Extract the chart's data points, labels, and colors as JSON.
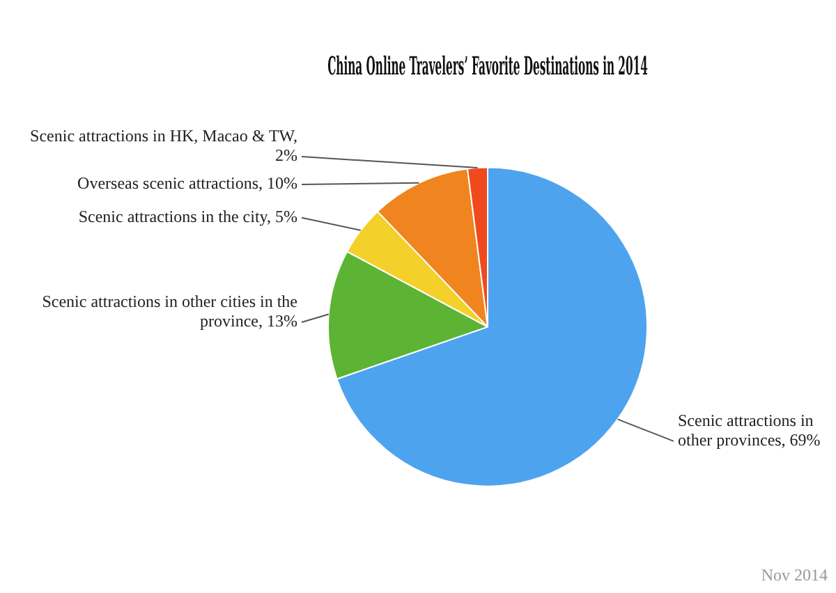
{
  "chart_data": {
    "type": "pie",
    "title": "China Online Travelers’ Favorite Destinations in 2014",
    "categories": [
      "Scenic attractions in other provinces, 69%",
      "Scenic attractions in other cities in the province, 13%",
      "Scenic attractions in the city, 5%",
      "Overseas scenic attractions, 10%",
      "Scenic attractions in HK, Macao & TW, 2%"
    ],
    "values": [
      69,
      13,
      5,
      10,
      2
    ],
    "colors": [
      "#4ea3ee",
      "#5db434",
      "#f3d02a",
      "#f0841f",
      "#f04a1c"
    ],
    "legend": false,
    "annotations": [
      "Nov 2014"
    ]
  }
}
